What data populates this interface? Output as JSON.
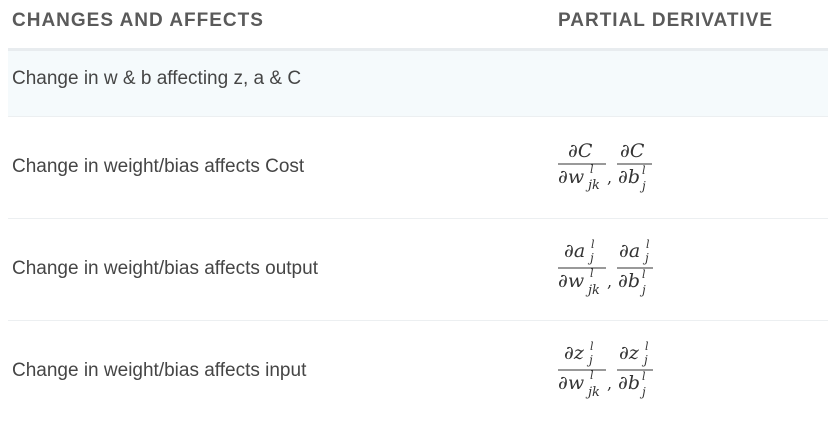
{
  "header": {
    "col1": "CHANGES AND AFFECTS",
    "col2": "PARTIAL DERIVATIVE"
  },
  "rows": [
    {
      "label": "Change in w & b affecting z, a & C",
      "derivative": ""
    },
    {
      "label": "Change in weight/bias affects Cost",
      "derivative": "∂C/∂w^l_jk, ∂C/∂b^l_j",
      "numerator_symbol": "C"
    },
    {
      "label": "Change in weight/bias affects output",
      "derivative": "∂a^l_j/∂w^l_jk, ∂a^l_j/∂b^l_j",
      "numerator_symbol": "a"
    },
    {
      "label": "Change in weight/bias affects input",
      "derivative": "∂z^l_j/∂w^l_jk, ∂z^l_j/∂b^l_j",
      "numerator_symbol": "z"
    }
  ]
}
